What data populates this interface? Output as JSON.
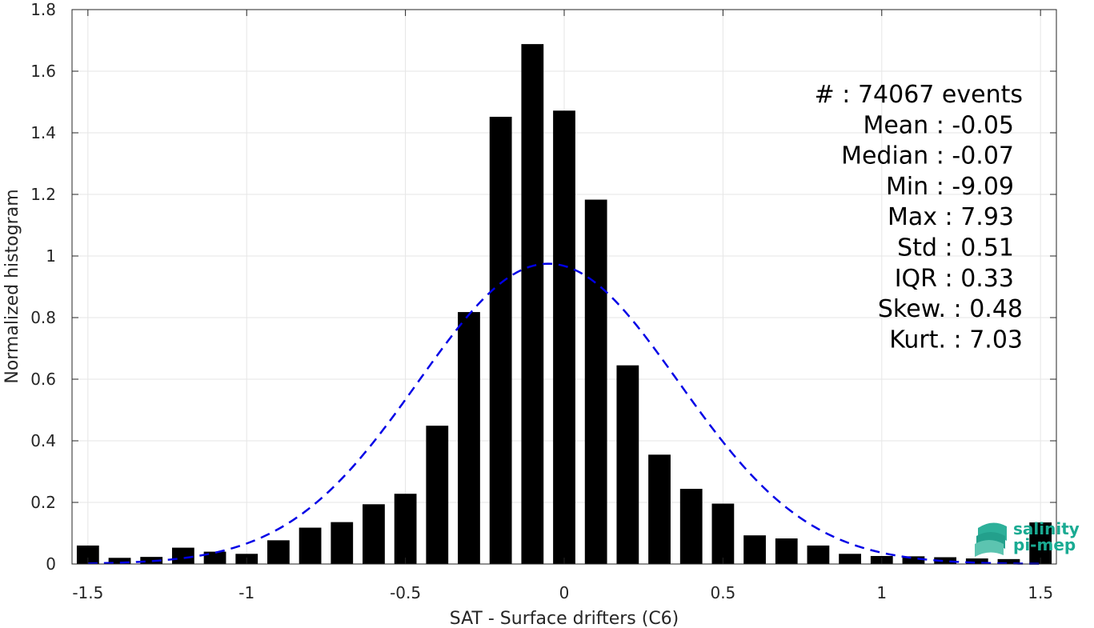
{
  "chart_data": {
    "type": "bar",
    "xlabel": "SAT - Surface drifters (C6)",
    "ylabel": "Normalized histogram",
    "xlim": [
      -1.55,
      1.55
    ],
    "ylim": [
      0,
      1.8
    ],
    "grid": true,
    "xticks": [
      -1.5,
      -1,
      -0.5,
      0,
      0.5,
      1,
      1.5
    ],
    "xtick_labels": [
      "-1.5",
      "-1",
      "-0.5",
      "0",
      "0.5",
      "1",
      "1.5"
    ],
    "yticks": [
      0,
      0.2,
      0.4,
      0.6,
      0.8,
      1,
      1.2,
      1.4,
      1.6,
      1.8
    ],
    "ytick_labels": [
      "0",
      "0.2",
      "0.4",
      "0.6",
      "0.8",
      "1",
      "1.2",
      "1.4",
      "1.6",
      "1.8"
    ],
    "bin_width": 0.1,
    "bar_width": 0.07,
    "bar_color": "#000000",
    "bins": [
      {
        "x": -1.5,
        "value": 0.06
      },
      {
        "x": -1.4,
        "value": 0.02
      },
      {
        "x": -1.3,
        "value": 0.023
      },
      {
        "x": -1.2,
        "value": 0.053
      },
      {
        "x": -1.1,
        "value": 0.04
      },
      {
        "x": -1.0,
        "value": 0.033
      },
      {
        "x": -0.9,
        "value": 0.077
      },
      {
        "x": -0.8,
        "value": 0.118
      },
      {
        "x": -0.7,
        "value": 0.136
      },
      {
        "x": -0.6,
        "value": 0.194
      },
      {
        "x": -0.5,
        "value": 0.228
      },
      {
        "x": -0.4,
        "value": 0.449
      },
      {
        "x": -0.3,
        "value": 0.818
      },
      {
        "x": -0.2,
        "value": 1.452
      },
      {
        "x": -0.1,
        "value": 1.688
      },
      {
        "x": 0.0,
        "value": 1.472
      },
      {
        "x": 0.1,
        "value": 1.183
      },
      {
        "x": 0.2,
        "value": 0.645
      },
      {
        "x": 0.3,
        "value": 0.355
      },
      {
        "x": 0.4,
        "value": 0.244
      },
      {
        "x": 0.5,
        "value": 0.196
      },
      {
        "x": 0.6,
        "value": 0.093
      },
      {
        "x": 0.7,
        "value": 0.083
      },
      {
        "x": 0.8,
        "value": 0.06
      },
      {
        "x": 0.9,
        "value": 0.033
      },
      {
        "x": 1.0,
        "value": 0.026
      },
      {
        "x": 1.1,
        "value": 0.025
      },
      {
        "x": 1.2,
        "value": 0.022
      },
      {
        "x": 1.3,
        "value": 0.018
      },
      {
        "x": 1.4,
        "value": 0.016
      },
      {
        "x": 1.5,
        "value": 0.135
      }
    ],
    "fit_curve": {
      "kind": "gaussian",
      "mean": -0.05,
      "std": 0.41,
      "peak": 0.975,
      "x_range": [
        -1.5,
        1.5
      ],
      "color": "#0000e6",
      "style": "dashed"
    },
    "stats_text": [
      "#  : 74067 events",
      "Mean : -0.05",
      "Median : -0.07",
      "Min : -9.09",
      "Max : 7.93",
      "Std : 0.51",
      "IQR : 0.33",
      "Skew. : 0.48",
      "Kurt. : 7.03"
    ]
  },
  "logo": {
    "line1": "salinity",
    "line2": "pi-mep",
    "color": "#1aab93",
    "icon": "wave-layers-icon"
  }
}
